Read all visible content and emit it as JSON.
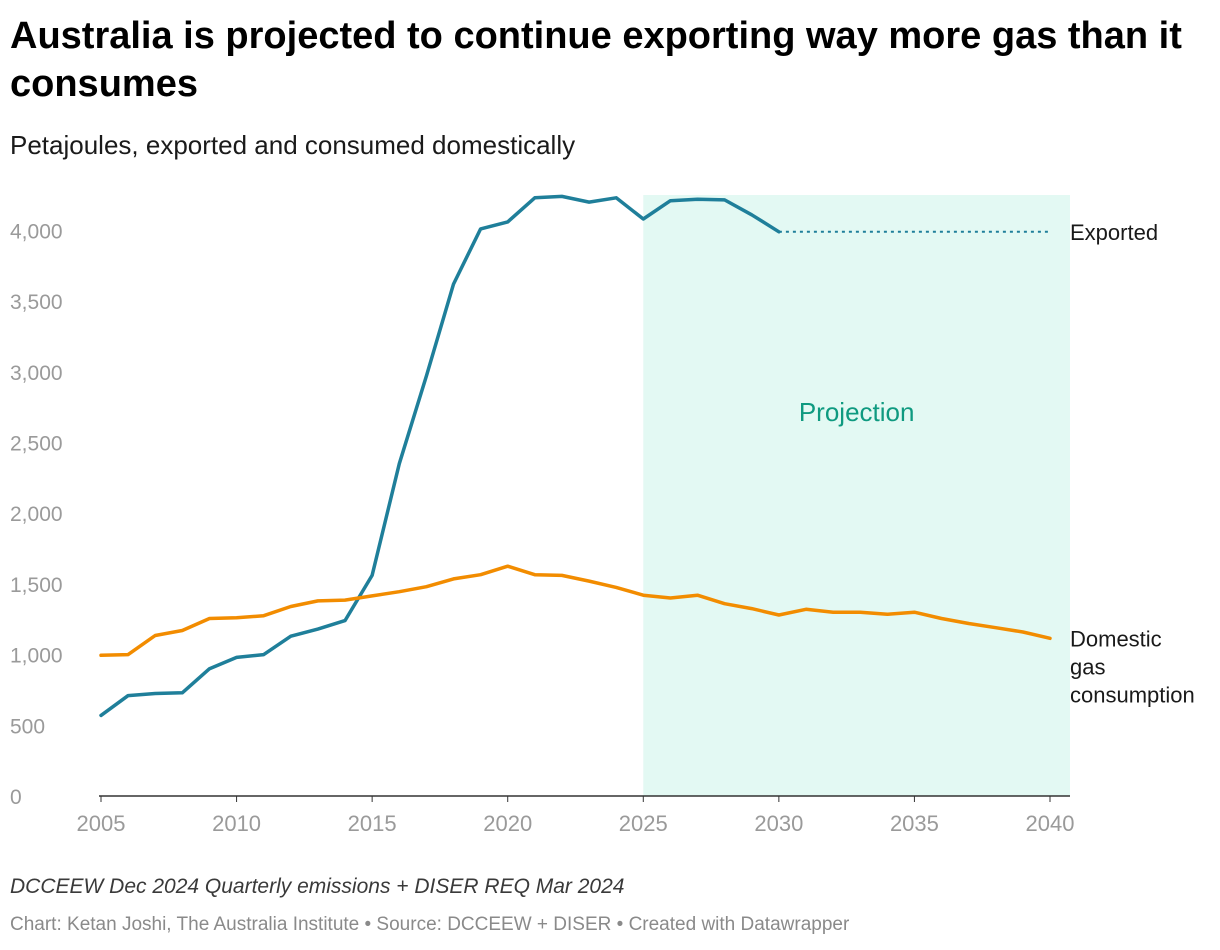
{
  "header": {
    "title": "Australia is projected to continue exporting way more gas than it consumes",
    "subtitle": "Petajoules, exported and consumed domestically"
  },
  "footer": {
    "note": "DCCEEW Dec 2024 Quarterly emissions + DISER REQ Mar 2024",
    "credits": "Chart: Ketan Joshi, The Australia Institute • Source: DCCEEW + DISER • Created with Datawrapper"
  },
  "colors": {
    "exported": "#1f7f9a",
    "domestic": "#f28c00",
    "projection_fill": "#e3f9f3",
    "projection_text": "#0f9a80",
    "tick_text": "#9a9a9a",
    "axis_line": "#333333"
  },
  "chart_data": {
    "type": "line",
    "title": "Australia is projected to continue exporting way more gas than it consumes",
    "subtitle": "Petajoules, exported and consumed domestically",
    "xlabel": "",
    "ylabel": "",
    "xlim": [
      2005,
      2040
    ],
    "ylim": [
      0,
      4250
    ],
    "x_ticks": [
      2005,
      2010,
      2015,
      2020,
      2025,
      2030,
      2035,
      2040
    ],
    "y_ticks": [
      0,
      500,
      1000,
      1500,
      2000,
      2500,
      3000,
      3500,
      4000
    ],
    "y_tick_labels": [
      "0",
      "500",
      "1,000",
      "1,500",
      "2,000",
      "2,500",
      "3,000",
      "3,500",
      "4,000"
    ],
    "grid": false,
    "projection_region": {
      "label": "Projection",
      "x_start": 2025,
      "x_end": 2040
    },
    "series": [
      {
        "name": "Exported",
        "label_lines": [
          "Exported"
        ],
        "color": "#1f7f9a",
        "x": [
          2005,
          2006,
          2007,
          2008,
          2009,
          2010,
          2011,
          2012,
          2013,
          2014,
          2015,
          2016,
          2017,
          2018,
          2019,
          2020,
          2021,
          2022,
          2023,
          2024,
          2025,
          2026,
          2027,
          2028,
          2029,
          2030
        ],
        "values": [
          570,
          710,
          725,
          730,
          900,
          980,
          1000,
          1130,
          1180,
          1240,
          1560,
          2350,
          2970,
          3620,
          4010,
          4060,
          4230,
          4240,
          4200,
          4230,
          4080,
          4210,
          4220,
          4215,
          4110,
          3990
        ],
        "extension": {
          "style": "dotted",
          "x": [
            2030,
            2040
          ],
          "values": [
            3990,
            3990
          ]
        }
      },
      {
        "name": "Domestic gas consumption",
        "label_lines": [
          "Domestic",
          "gas",
          "consumption"
        ],
        "color": "#f28c00",
        "x": [
          2005,
          2006,
          2007,
          2008,
          2009,
          2010,
          2011,
          2012,
          2013,
          2014,
          2015,
          2016,
          2017,
          2018,
          2019,
          2020,
          2021,
          2022,
          2023,
          2024,
          2025,
          2026,
          2027,
          2028,
          2029,
          2030,
          2031,
          2032,
          2033,
          2034,
          2035,
          2036,
          2037,
          2038,
          2039,
          2040
        ],
        "values": [
          995,
          1000,
          1135,
          1170,
          1255,
          1260,
          1275,
          1340,
          1380,
          1385,
          1415,
          1445,
          1480,
          1535,
          1565,
          1625,
          1565,
          1560,
          1520,
          1475,
          1420,
          1400,
          1420,
          1360,
          1325,
          1280,
          1320,
          1300,
          1300,
          1285,
          1300,
          1255,
          1220,
          1190,
          1160,
          1115
        ]
      }
    ]
  }
}
